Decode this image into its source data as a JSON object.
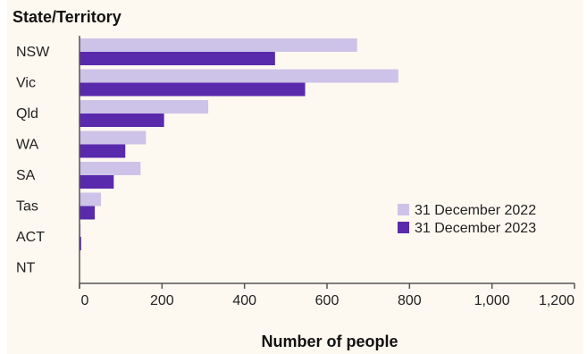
{
  "chart_data": {
    "type": "bar",
    "orientation": "horizontal",
    "ylabel": "State/Territory",
    "xlabel": "Number of people",
    "categories": [
      "NSW",
      "Vic",
      "Qld",
      "WA",
      "SA",
      "Tas",
      "ACT",
      "NT"
    ],
    "series": [
      {
        "name": "31 December 2022",
        "color": "#cdc3e8",
        "values": [
          673,
          773,
          312,
          161,
          148,
          52,
          3,
          1
        ]
      },
      {
        "name": "31 December 2023",
        "color": "#5a2aad",
        "values": [
          474,
          547,
          205,
          111,
          83,
          37,
          4,
          1
        ]
      }
    ],
    "xlim": [
      0,
      1200
    ],
    "xticks": [
      0,
      200,
      400,
      600,
      800,
      1000,
      1200
    ],
    "xtick_labels": [
      "0",
      "200",
      "400",
      "600",
      "800",
      "1,000",
      "1,200"
    ],
    "grid": false,
    "legend_position": "right"
  }
}
